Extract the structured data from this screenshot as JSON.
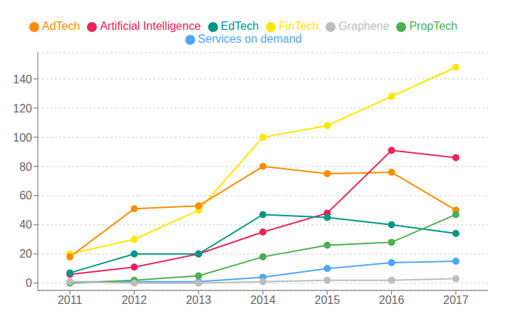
{
  "chart_data": {
    "type": "line",
    "x": [
      2011,
      2012,
      2013,
      2014,
      2015,
      2016,
      2017
    ],
    "series": [
      {
        "name": "FinTech",
        "color": "#FFE600",
        "values": [
          20,
          30,
          50,
          100,
          108,
          128,
          148
        ]
      },
      {
        "name": "AdTech",
        "color": "#FF8C00",
        "values": [
          18,
          51,
          53,
          80,
          75,
          76,
          50
        ]
      },
      {
        "name": "Artificial Intelligence",
        "color": "#E8245A",
        "values": [
          6,
          11,
          20,
          35,
          48,
          91,
          86
        ]
      },
      {
        "name": "Services on demand",
        "color": "#4DA6FF",
        "values": [
          1,
          1,
          1,
          4,
          10,
          14,
          15
        ]
      },
      {
        "name": "EdTech",
        "color": "#009688",
        "values": [
          7,
          20,
          20,
          47,
          45,
          40,
          34
        ]
      },
      {
        "name": "PropTech",
        "color": "#4CAF50",
        "values": [
          0,
          2,
          5,
          18,
          26,
          28,
          47
        ]
      },
      {
        "name": "Graphene",
        "color": "#BDBDBD",
        "values": [
          1,
          0,
          0,
          1,
          2,
          2,
          3
        ]
      }
    ],
    "xlim": [
      2010.5,
      2017.5
    ],
    "xticks": [
      2011,
      2012,
      2013,
      2014,
      2015,
      2016,
      2017
    ],
    "ylim": [
      -5,
      158
    ],
    "yticks": [
      0,
      20,
      40,
      60,
      80,
      100,
      120,
      140
    ],
    "grid": true,
    "legend": "top",
    "marker": "circle"
  }
}
